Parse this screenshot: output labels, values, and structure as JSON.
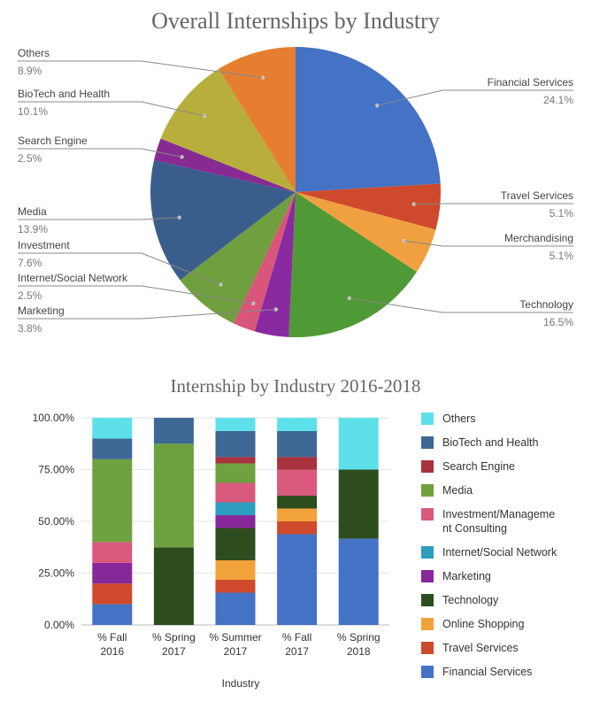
{
  "colors": {
    "Financial Services": "#4472c4",
    "Travel Services": "#cf4a2c",
    "Merchandising": "#f0a040",
    "Online Shopping": "#f2a23a",
    "Technology": "#2d4d1f",
    "Marketing": "#87289a",
    "Internet/Social Network": "#2d9ec0",
    "Investment": "#d95a7c",
    "Media": "#6fa13e",
    "Search Engine": "#a8323e",
    "BioTech and Health": "#3e6896",
    "BioTech and Health pie": "#b8ae3c",
    "Media pie": "#3a5e8c",
    "Search Engine pie": "#882a94",
    "Investment pie": "#6f9f3e",
    "Internet/Social Network pie": "#d9557a",
    "Others pie": "#e67e30",
    "Others": "#5ee0ea"
  },
  "chart_data": [
    {
      "type": "pie",
      "title": "Overall Internships by Industry",
      "slices": [
        {
          "label": "Financial Services",
          "pct_label": "24.1%",
          "value": 24.1,
          "color": "#4472c4"
        },
        {
          "label": "Travel Services",
          "pct_label": "5.1%",
          "value": 5.1,
          "color": "#cf4a2c"
        },
        {
          "label": "Merchandising",
          "pct_label": "5.1%",
          "value": 5.1,
          "color": "#f0a040"
        },
        {
          "label": "Technology",
          "pct_label": "16.5%",
          "value": 16.5,
          "color": "#4f9a36"
        },
        {
          "label": "Marketing",
          "pct_label": "3.8%",
          "value": 3.8,
          "color": "#8a2aa0"
        },
        {
          "label": "Internet/Social Network",
          "pct_label": "2.5%",
          "value": 2.5,
          "color": "#d9557a"
        },
        {
          "label": "Investment",
          "pct_label": "7.6%",
          "value": 7.6,
          "color": "#6f9f3e"
        },
        {
          "label": "Media",
          "pct_label": "13.9%",
          "value": 13.9,
          "color": "#3a5e8c"
        },
        {
          "label": "Search Engine",
          "pct_label": "2.5%",
          "value": 2.5,
          "color": "#882a94"
        },
        {
          "label": "BioTech and Health",
          "pct_label": "10.1%",
          "value": 10.1,
          "color": "#b8ae3c"
        },
        {
          "label": "Others",
          "pct_label": "8.9%",
          "value": 8.9,
          "color": "#e67e30"
        }
      ]
    },
    {
      "type": "bar",
      "stacked": true,
      "title": "Internship by Industry 2016-2018",
      "xlabel": "Industry",
      "ylabel": "",
      "ylim": [
        0,
        100
      ],
      "yticks": [
        "0.00%",
        "25.00%",
        "50.00%",
        "75.00%",
        "100.00%"
      ],
      "categories": [
        [
          "% Fall",
          "2016"
        ],
        [
          "% Spring",
          "2017"
        ],
        [
          "% Summer",
          "2017"
        ],
        [
          "% Fall",
          "2017"
        ],
        [
          "% Spring",
          "2018"
        ]
      ],
      "legend_position": "right",
      "series": [
        {
          "name": "Financial Services",
          "color": "#4472c4",
          "values": [
            10,
            0,
            15.6,
            43.8,
            41.7
          ]
        },
        {
          "name": "Travel Services",
          "color": "#cf4a2c",
          "values": [
            10,
            0,
            6.2,
            6.2,
            0
          ]
        },
        {
          "name": "Online Shopping",
          "color": "#f2a23a",
          "values": [
            0,
            0,
            9.4,
            6.2,
            0
          ]
        },
        {
          "name": "Technology",
          "color": "#2d4d1f",
          "values": [
            0,
            37.5,
            15.6,
            6.2,
            33.3
          ]
        },
        {
          "name": "Marketing",
          "color": "#87289a",
          "values": [
            10,
            0,
            6.2,
            0,
            0
          ]
        },
        {
          "name": "Internet/Social Network",
          "color": "#2d9ec0",
          "values": [
            0,
            0,
            6.2,
            0,
            0
          ]
        },
        {
          "name": "Investment/Management Consulting",
          "legend_lines": [
            "Investment/Manageme",
            "nt Consulting"
          ],
          "color": "#d95a7c",
          "values": [
            10,
            0,
            9.4,
            12.5,
            0
          ]
        },
        {
          "name": "Media",
          "color": "#6fa13e",
          "values": [
            40,
            50,
            9.4,
            0,
            0
          ]
        },
        {
          "name": "Search Engine",
          "color": "#a8323e",
          "values": [
            0,
            0,
            3.1,
            6.2,
            0
          ]
        },
        {
          "name": "BioTech and Health",
          "color": "#3e6896",
          "values": [
            10,
            12.5,
            12.5,
            12.5,
            0
          ]
        },
        {
          "name": "Others",
          "color": "#5ee0ea",
          "values": [
            10,
            0,
            6.4,
            6.4,
            25
          ]
        }
      ]
    }
  ]
}
